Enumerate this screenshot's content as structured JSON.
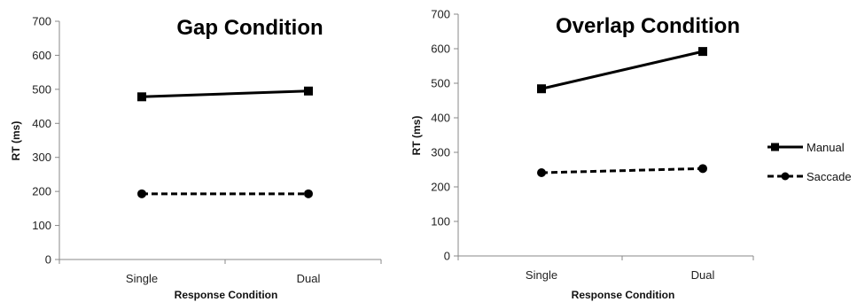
{
  "chart_data": [
    {
      "type": "line",
      "title": "Gap Condition",
      "xlabel": "Response Condition",
      "ylabel": "RT (ms)",
      "categories": [
        "Single",
        "Dual"
      ],
      "ylim": [
        0,
        700
      ],
      "yticks": [
        0,
        100,
        200,
        300,
        400,
        500,
        600,
        700
      ],
      "grid": false,
      "series": [
        {
          "name": "Manual",
          "values": [
            478,
            495
          ],
          "style": "solid",
          "marker": "square",
          "color": "#000000"
        },
        {
          "name": "Saccade",
          "values": [
            193,
            193
          ],
          "style": "dashed",
          "marker": "circle",
          "color": "#000000"
        }
      ]
    },
    {
      "type": "line",
      "title": "Overlap Condition",
      "xlabel": "Response Condition",
      "ylabel": "RT (ms)",
      "categories": [
        "Single",
        "Dual"
      ],
      "ylim": [
        0,
        700
      ],
      "yticks": [
        0,
        100,
        200,
        300,
        400,
        500,
        600,
        700
      ],
      "grid": false,
      "legend": "right",
      "series": [
        {
          "name": "Manual",
          "values": [
            484,
            592
          ],
          "style": "solid",
          "marker": "square",
          "color": "#000000"
        },
        {
          "name": "Saccade",
          "values": [
            241,
            253
          ],
          "style": "dashed",
          "marker": "circle",
          "color": "#000000"
        }
      ]
    }
  ]
}
